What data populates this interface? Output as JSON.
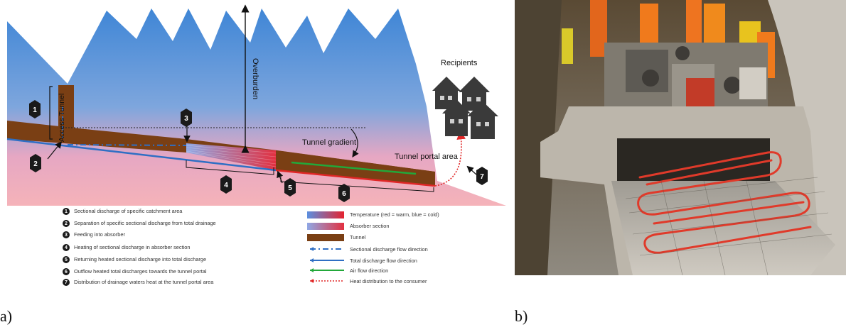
{
  "figure": {
    "caption_a": "a)",
    "caption_b": "b)"
  },
  "diagram_a": {
    "labels": {
      "overburden": "Overburden",
      "access_tunnel": "Access Tunnel",
      "tunnel_gradient": "Tunnel gradient",
      "tunnel_portal_area": "Tunnel portal area",
      "recipients": "Recipients"
    },
    "markers": [
      "1",
      "2",
      "3",
      "4",
      "5",
      "6",
      "7"
    ],
    "legend_numbered": [
      {
        "num": "1",
        "text": "Sectional discharge of specific catchment area"
      },
      {
        "num": "2",
        "text": "Separation of specific sectional discharge from total drainage"
      },
      {
        "num": "3",
        "text": "Feeding into absorber"
      },
      {
        "num": "4",
        "text": "Heating of sectional discharge in absorber section"
      },
      {
        "num": "5",
        "text": "Returning heated sectional discharge into total discharge"
      },
      {
        "num": "6",
        "text": "Outflow heated total discharges towards the tunnel portal"
      },
      {
        "num": "7",
        "text": "Distribution of drainage waters heat at the tunnel portal area"
      }
    ],
    "legend_symbols": [
      {
        "symbol": "temperature-gradient",
        "text": "Temperature (red = warm, blue = cold)"
      },
      {
        "symbol": "absorber-swatch",
        "text": "Absorber section"
      },
      {
        "symbol": "tunnel-swatch",
        "text": "Tunnel"
      },
      {
        "symbol": "dash-dot-blue-arrow",
        "text": "Sectional discharge flow direction"
      },
      {
        "symbol": "solid-blue-arrow",
        "text": "Total discharge flow direction"
      },
      {
        "symbol": "green-arrow",
        "text": "Air flow direction"
      },
      {
        "symbol": "dotted-red-arrow",
        "text": "Heat distribution to the consumer"
      }
    ],
    "colors": {
      "mountain_top": "#4f8fd8",
      "mountain_bottom": "#f2a9b4",
      "tunnel": "#7a3f14",
      "sectional_flow": "#2f6fc4",
      "air_flow": "#22a83a",
      "heat_flow": "#e02626"
    }
  },
  "photo_b": {
    "description_hidden": "",
    "colors": {
      "concrete": "#b9b3a8",
      "shadow": "#2a2722",
      "absorber_pipe": "#e03a2a",
      "worker_vest": "#f07a1c"
    }
  }
}
